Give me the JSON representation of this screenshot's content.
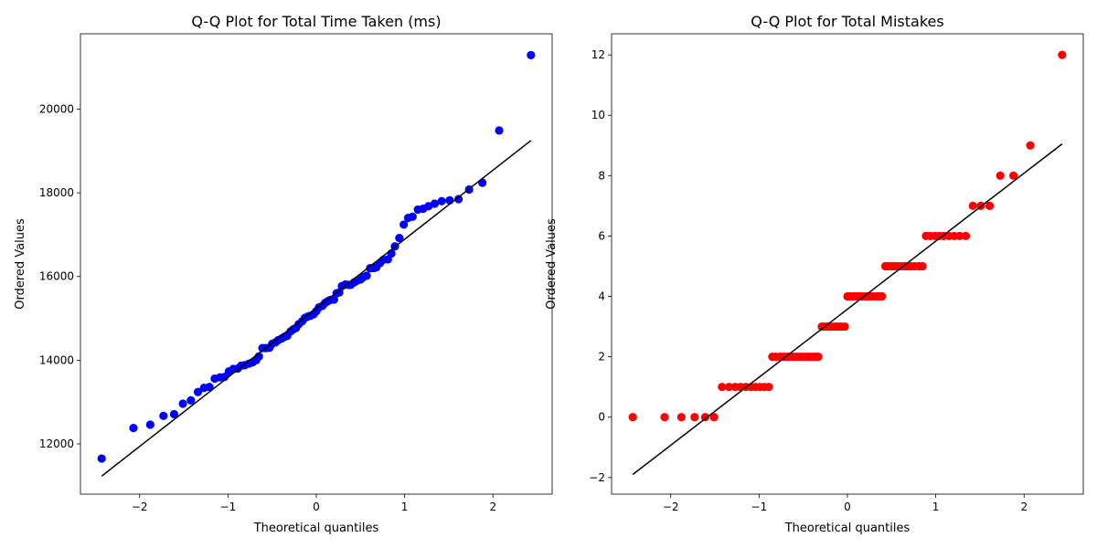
{
  "chart_data": [
    {
      "type": "scatter",
      "title": "Q-Q Plot for Total Time Taken (ms)",
      "xlabel": "Theoretical quantiles",
      "ylabel": "Ordered Values",
      "xlim": [
        -2.67,
        2.67
      ],
      "ylim": [
        10800,
        21800
      ],
      "xticks": [
        -2,
        -1,
        0,
        1,
        2
      ],
      "xtick_labels": [
        "−2",
        "−1",
        "0",
        "1",
        "2"
      ],
      "yticks": [
        12000,
        14000,
        16000,
        18000,
        20000
      ],
      "ytick_labels": [
        "12000",
        "14000",
        "16000",
        "18000",
        "20000"
      ],
      "point_color": "#0000ff",
      "line_color": "#000000",
      "fit_line": {
        "x": [
          -2.43,
          2.43
        ],
        "y": [
          11230,
          19250
        ]
      },
      "series": [
        {
          "x": [
            -2.43,
            -2.07,
            -1.88,
            -1.73,
            -1.61,
            -1.51,
            -1.42,
            -1.34,
            -1.27,
            -1.21,
            -1.15,
            -1.09,
            -1.04,
            -0.99,
            -0.94,
            -0.89,
            -0.85,
            -0.81,
            -0.76,
            -0.72,
            -0.68,
            -0.65,
            -0.61,
            -0.57,
            -0.53,
            -0.5,
            -0.46,
            -0.43,
            -0.39,
            -0.36,
            -0.33,
            -0.29,
            -0.26,
            -0.23,
            -0.2,
            -0.16,
            -0.13,
            -0.1,
            -0.07,
            -0.03,
            0.0,
            0.03,
            0.07,
            0.1,
            0.13,
            0.16,
            0.2,
            0.23,
            0.26,
            0.29,
            0.33,
            0.36,
            0.39,
            0.43,
            0.46,
            0.5,
            0.53,
            0.57,
            0.61,
            0.65,
            0.68,
            0.72,
            0.76,
            0.81,
            0.85,
            0.89,
            0.94,
            0.99,
            1.04,
            1.09,
            1.15,
            1.21,
            1.27,
            1.34,
            1.42,
            1.51,
            1.61,
            1.73,
            1.88,
            2.07,
            2.43
          ],
          "y": [
            11650,
            12380,
            12460,
            12670,
            12710,
            12960,
            13040,
            13240,
            13340,
            13360,
            13560,
            13590,
            13600,
            13730,
            13790,
            13800,
            13870,
            13880,
            13920,
            13950,
            14000,
            14090,
            14290,
            14290,
            14300,
            14390,
            14430,
            14480,
            14520,
            14560,
            14580,
            14690,
            14740,
            14770,
            14860,
            14930,
            15010,
            15040,
            15060,
            15100,
            15170,
            15260,
            15300,
            15370,
            15410,
            15440,
            15450,
            15600,
            15620,
            15770,
            15810,
            15800,
            15800,
            15860,
            15900,
            15930,
            15980,
            16020,
            16200,
            16200,
            16220,
            16320,
            16400,
            16410,
            16550,
            16720,
            16920,
            17240,
            17400,
            17430,
            17600,
            17620,
            17680,
            17740,
            17800,
            17820,
            17850,
            18080,
            18240,
            19490,
            21290
          ]
        }
      ]
    },
    {
      "type": "scatter",
      "title": "Q-Q Plot for Total Mistakes",
      "xlabel": "Theoretical quantiles",
      "ylabel": "Ordered Values",
      "xlim": [
        -2.67,
        2.67
      ],
      "ylim": [
        -2.55,
        12.7
      ],
      "xticks": [
        -2,
        -1,
        0,
        1,
        2
      ],
      "xtick_labels": [
        "−2",
        "−1",
        "0",
        "1",
        "2"
      ],
      "yticks": [
        -2,
        0,
        2,
        4,
        6,
        8,
        10,
        12
      ],
      "ytick_labels": [
        "−2",
        "0",
        "2",
        "4",
        "6",
        "8",
        "10",
        "12"
      ],
      "point_color": "#ff0000",
      "line_color": "#000000",
      "fit_line": {
        "x": [
          -2.43,
          2.43
        ],
        "y": [
          -1.9,
          9.05
        ]
      },
      "series": [
        {
          "x": [
            -2.43,
            -2.07,
            -1.88,
            -1.73,
            -1.61,
            -1.51,
            -1.42,
            -1.34,
            -1.27,
            -1.21,
            -1.15,
            -1.09,
            -1.04,
            -0.99,
            -0.94,
            -0.89,
            -0.85,
            -0.81,
            -0.76,
            -0.72,
            -0.68,
            -0.65,
            -0.61,
            -0.57,
            -0.53,
            -0.5,
            -0.46,
            -0.43,
            -0.39,
            -0.36,
            -0.33,
            -0.29,
            -0.26,
            -0.23,
            -0.2,
            -0.16,
            -0.13,
            -0.1,
            -0.07,
            -0.03,
            0.0,
            0.03,
            0.07,
            0.1,
            0.13,
            0.16,
            0.2,
            0.23,
            0.26,
            0.29,
            0.33,
            0.36,
            0.39,
            0.43,
            0.46,
            0.5,
            0.53,
            0.57,
            0.61,
            0.65,
            0.68,
            0.72,
            0.76,
            0.81,
            0.85,
            0.89,
            0.94,
            0.99,
            1.04,
            1.09,
            1.15,
            1.21,
            1.27,
            1.34,
            1.42,
            1.51,
            1.61,
            1.73,
            1.88,
            2.07,
            2.43
          ],
          "y": [
            0,
            0,
            0,
            0,
            0,
            0,
            1,
            1,
            1,
            1,
            1,
            1,
            1,
            1,
            1,
            1,
            2,
            2,
            2,
            2,
            2,
            2,
            2,
            2,
            2,
            2,
            2,
            2,
            2,
            2,
            2,
            3,
            3,
            3,
            3,
            3,
            3,
            3,
            3,
            3,
            4,
            4,
            4,
            4,
            4,
            4,
            4,
            4,
            4,
            4,
            4,
            4,
            4,
            5,
            5,
            5,
            5,
            5,
            5,
            5,
            5,
            5,
            5,
            5,
            5,
            6,
            6,
            6,
            6,
            6,
            6,
            6,
            6,
            6,
            7,
            7,
            7,
            8,
            8,
            9,
            12
          ]
        }
      ]
    }
  ]
}
